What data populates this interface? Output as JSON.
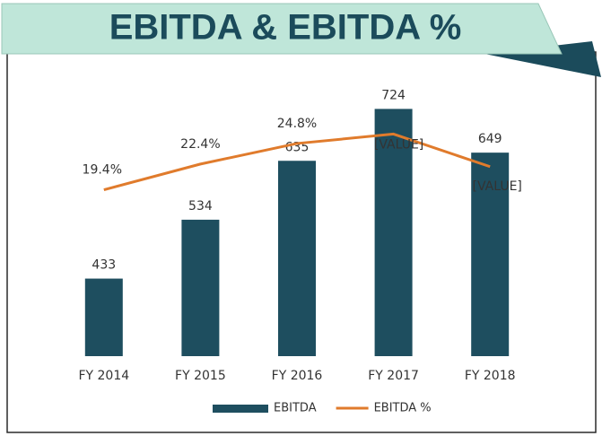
{
  "chart_data": {
    "type": "bar-line",
    "title": "EBITDA & EBITDA %",
    "categories": [
      "FY 2014",
      "FY 2015",
      "FY 2016",
      "FY 2017",
      "FY 2018"
    ],
    "series": [
      {
        "name": "EBITDA",
        "type": "bar",
        "color": "#1e4e5f",
        "values": [
          433,
          534,
          635,
          724,
          649
        ]
      },
      {
        "name": "EBITDA %",
        "type": "line",
        "axis": "y2",
        "color": "#e07b2c",
        "values": [
          19.4,
          22.4,
          24.8,
          25.9,
          22.1
        ],
        "value_labels": [
          "19.4%",
          "22.4%",
          "24.8%",
          "[VALUE]",
          "[VALUE]"
        ]
      }
    ],
    "ylim": [
      300,
      800
    ],
    "y2lim": [
      0,
      34
    ],
    "legend": "bottom"
  }
}
